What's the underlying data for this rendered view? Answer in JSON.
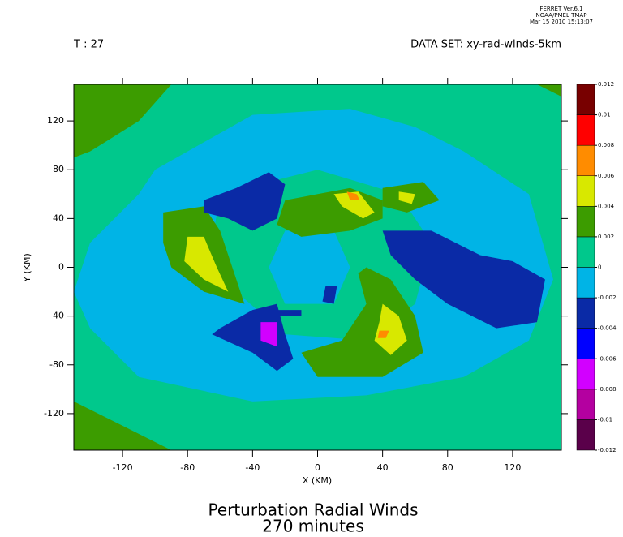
{
  "chart_data": {
    "type": "contour",
    "title": "Perturbation Radial Winds",
    "subtitle": "270 minutes",
    "header": [
      "FERRET Ver.6.1",
      "NOAA/PMEL TMAP",
      "Mar 15 2010 15:13:07"
    ],
    "time_label": "T : 27",
    "dataset_label": "DATA SET: xy-rad-winds-5km",
    "xlabel": "X (KM)",
    "ylabel": "Y (KM)",
    "xlim": [
      -150,
      150
    ],
    "ylim": [
      -150,
      150
    ],
    "xticks": [
      -120,
      -80,
      -40,
      0,
      40,
      80,
      120
    ],
    "yticks": [
      -120,
      -80,
      -40,
      0,
      40,
      80,
      120
    ],
    "colorbar": {
      "levels": [
        -0.012,
        -0.01,
        -0.008,
        -0.006,
        -0.004,
        -0.002,
        0,
        0.002,
        0.004,
        0.006,
        0.008,
        0.01,
        0.012
      ],
      "colors": [
        "#5a004a",
        "#b400a0",
        "#d200ff",
        "#0000ff",
        "#0a2aa6",
        "#00b4e6",
        "#00c88c",
        "#3c9c00",
        "#d8e800",
        "#ff8c00",
        "#ff0000",
        "#780000"
      ]
    }
  }
}
